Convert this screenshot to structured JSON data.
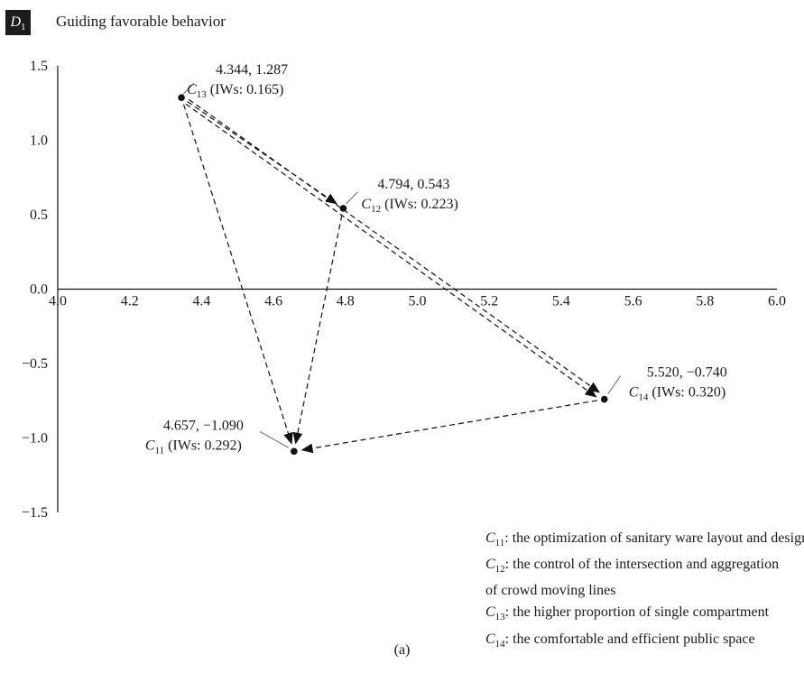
{
  "header": {
    "badge_letter": "D",
    "badge_sub": "1",
    "title": "Guiding favorable behavior"
  },
  "caption": "(a)",
  "chart_data": {
    "type": "scatter",
    "xlim": [
      4.0,
      6.0
    ],
    "ylim": [
      -1.5,
      1.5
    ],
    "x_ticks": [
      "4.0",
      "4.2",
      "4.4",
      "4.6",
      "4.8",
      "5.0",
      "5.2",
      "5.4",
      "5.6",
      "5.8",
      "6.0"
    ],
    "y_ticks": [
      "1.5",
      "1.0",
      "0.5",
      "0.0",
      "−0.5",
      "−1.0",
      "−1.5"
    ],
    "points": [
      {
        "id": "C11",
        "sub": "11",
        "x": 4.657,
        "y": -1.09,
        "coord_label": "4.657, −1.090",
        "iw_label": " (IWs: 0.292)"
      },
      {
        "id": "C12",
        "sub": "12",
        "x": 4.794,
        "y": 0.543,
        "coord_label": "4.794, 0.543",
        "iw_label": " (IWs: 0.223)"
      },
      {
        "id": "C13",
        "sub": "13",
        "x": 4.344,
        "y": 1.287,
        "coord_label": "4.344, 1.287",
        "iw_label": " (IWs: 0.165)"
      },
      {
        "id": "C14",
        "sub": "14",
        "x": 5.52,
        "y": -0.74,
        "coord_label": "5.520, −0.740",
        "iw_label": " (IWs: 0.320)"
      }
    ],
    "arrows": [
      {
        "from": "C13",
        "to": "C11"
      },
      {
        "from": "C12",
        "to": "C11"
      },
      {
        "from": "C14",
        "to": "C11"
      },
      {
        "from": "C13",
        "to": "C12"
      },
      {
        "from": "C13",
        "to": "C14"
      },
      {
        "from": "C13",
        "to": "C14"
      }
    ]
  },
  "legend": [
    {
      "letter": "C",
      "sub": "11",
      "text": ": the optimization of sanitary ware layout and design"
    },
    {
      "letter": "C",
      "sub": "12",
      "text": ": the control of the intersection and aggregation"
    },
    {
      "letter": "",
      "sub": "",
      "text": "of crowd moving lines"
    },
    {
      "letter": "C",
      "sub": "13",
      "text": ": the higher proportion of single compartment"
    },
    {
      "letter": "C",
      "sub": "14",
      "text": ": the comfortable and efficient public space"
    }
  ]
}
